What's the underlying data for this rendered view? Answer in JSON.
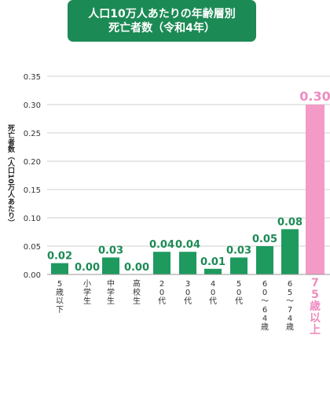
{
  "title": {
    "line1": "人口10万人あたりの年齢層別",
    "line2": "死亡者数（令和4年）"
  },
  "colors": {
    "accent": "#1c8a55",
    "bar": "#1e9a5f",
    "highlight": "#f49ac7",
    "highlight_text": "#ee8cc0"
  },
  "chart_data": {
    "type": "bar",
    "title": "人口10万人あたりの年齢層別 死亡者数（令和4年）",
    "ylabel": "死亡者数（人口10万人あたり）",
    "xlabel": "",
    "ylim": [
      0,
      0.35
    ],
    "yticks": [
      "0.35",
      "0.30",
      "0.25",
      "0.20",
      "0.15",
      "0.10",
      "0.05",
      "0.00"
    ],
    "grid": true,
    "categories": [
      "5歳以下",
      "小学生",
      "中学生",
      "高校生",
      "20代",
      "30代",
      "40代",
      "50代",
      "60～64歳",
      "65～74歳",
      "75歳以上"
    ],
    "values": [
      0.02,
      0.0,
      0.03,
      0.0,
      0.04,
      0.04,
      0.01,
      0.03,
      0.05,
      0.08,
      0.3
    ],
    "value_labels": [
      "0.02",
      "0.00",
      "0.03",
      "0.00",
      "0.04",
      "0.04",
      "0.01",
      "0.03",
      "0.05",
      "0.08",
      "0.30"
    ],
    "highlight_index": 10
  }
}
